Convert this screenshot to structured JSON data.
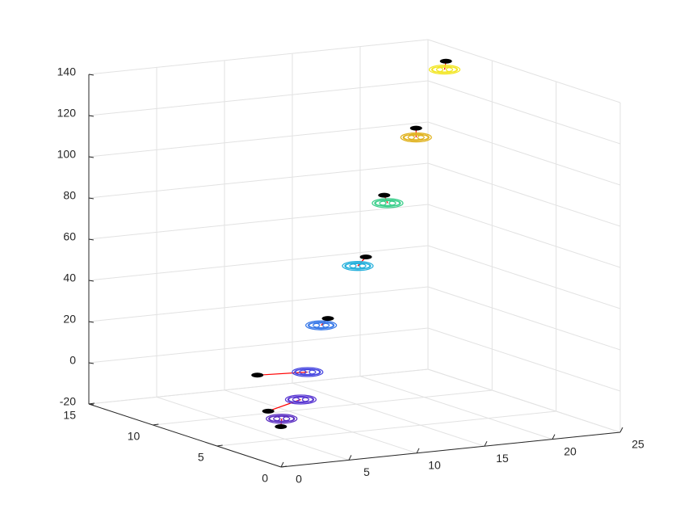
{
  "chart_data": {
    "type": "scatter3d",
    "xlim": [
      0,
      25
    ],
    "ylim": [
      0,
      15
    ],
    "zlim": [
      -20,
      140
    ],
    "xticks": [
      0,
      5,
      10,
      15,
      20,
      25
    ],
    "yticks": [
      0,
      5,
      10,
      15
    ],
    "zticks": [
      -20,
      0,
      20,
      40,
      60,
      80,
      100,
      120,
      140
    ],
    "grid": true,
    "link_color": "#ff0000",
    "series": [
      {
        "marker": "ring",
        "colors": [
          "#f2e625",
          "#e0b21e",
          "#3ccf8c",
          "#25b0dc",
          "#3a7ae8",
          "#4848e0",
          "#5a38d2",
          "#5c30c2"
        ],
        "x": [
          21.5,
          19.4,
          17.3,
          15.1,
          12.4,
          11.4,
          10.9,
          7.6
        ],
        "y": [
          10,
          10,
          10,
          10,
          10,
          10,
          10,
          8
        ],
        "z": [
          138,
          106.5,
          76,
          47,
          20,
          -2,
          -15,
          -18
        ]
      },
      {
        "marker": "disc",
        "color": "#000000",
        "x": [
          21.6,
          19.4,
          17.05,
          15.7,
          12.9,
          7.7,
          8.5,
          6.6
        ],
        "y": [
          10,
          10,
          10,
          10,
          10,
          10,
          10,
          7
        ],
        "z": [
          142,
          111,
          80,
          51,
          23,
          -1,
          -19,
          -19.1
        ]
      }
    ]
  }
}
